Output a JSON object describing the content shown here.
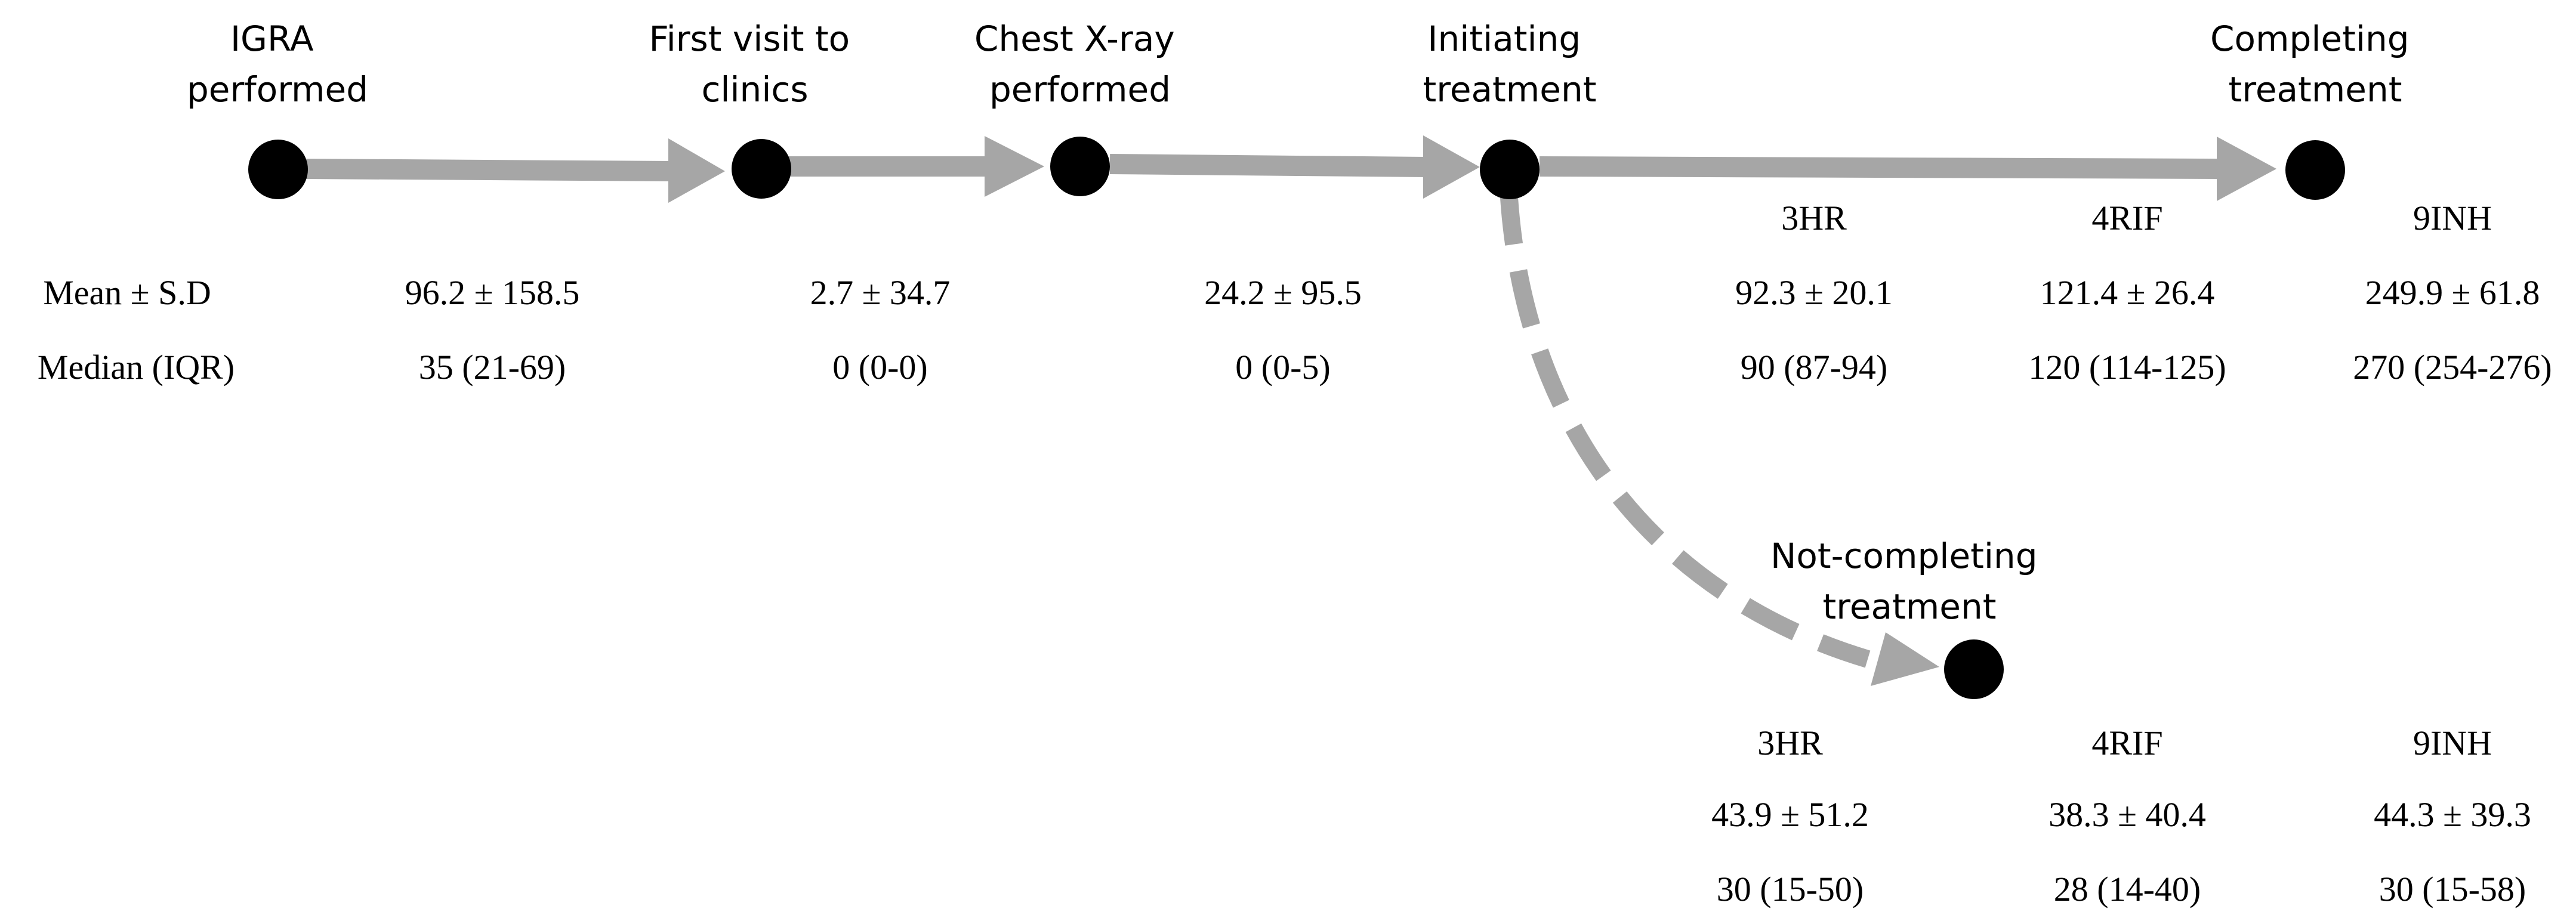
{
  "colors": {
    "arrow": "#a6a6a6",
    "node": "#000000",
    "text": "#000000",
    "background": "#ffffff"
  },
  "stages": [
    {
      "id": "igra",
      "label_lines": [
        "IGRA",
        "performed"
      ]
    },
    {
      "id": "first_visit",
      "label_lines": [
        "First visit to",
        "clinics"
      ]
    },
    {
      "id": "chest_xray",
      "label_lines": [
        "Chest X-ray",
        "performed"
      ]
    },
    {
      "id": "initiating",
      "label_lines": [
        "Initiating",
        "treatment"
      ]
    },
    {
      "id": "completing",
      "label_lines": [
        "Completing",
        "treatment"
      ]
    },
    {
      "id": "not_completing",
      "label_lines": [
        "Not-completing",
        "treatment"
      ]
    }
  ],
  "row_labels": {
    "mean": "Mean ± S.D",
    "median": "Median (IQR)"
  },
  "intervals": [
    {
      "mean": "96.2 ± 158.5",
      "median": "35 (21-69)"
    },
    {
      "mean": "2.7 ± 34.7",
      "median": "0 (0-0)"
    },
    {
      "mean": "24.2 ± 95.5",
      "median": "0 (0-5)"
    }
  ],
  "completing_regimens": [
    {
      "name": "3HR",
      "mean": "92.3 ± 20.1",
      "median": "90 (87-94)"
    },
    {
      "name": "4RIF",
      "mean": "121.4 ± 26.4",
      "median": "120 (114-125)"
    },
    {
      "name": "9INH",
      "mean": "249.9 ± 61.8",
      "median": "270 (254-276)"
    }
  ],
  "not_completing_regimens": [
    {
      "name": "3HR",
      "mean": "43.9 ± 51.2",
      "median": "30 (15-50)"
    },
    {
      "name": "4RIF",
      "mean": "38.3 ± 40.4",
      "median": "28 (14-40)"
    },
    {
      "name": "9INH",
      "mean": "44.3 ± 39.3",
      "median": "30 (15-58)"
    }
  ]
}
